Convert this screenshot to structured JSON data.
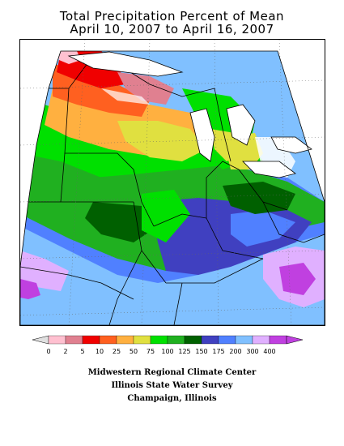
{
  "title": {
    "line1": "Total Precipitation Percent of Mean",
    "line2": "April 10, 2007 to April 16, 2007"
  },
  "map": {
    "variable": "precipitation percent of mean",
    "region": "Midwest United States",
    "notable_areas": [
      {
        "area": "Minnesota arrowhead",
        "range": "0-25"
      },
      {
        "area": "Upper Michigan / northern Wisconsin",
        "range": "25-75"
      },
      {
        "area": "Iowa / southern Wisconsin / Illinois",
        "range": "75-150"
      },
      {
        "area": "Kentucky / southern Ohio",
        "range": "150-200"
      },
      {
        "area": "Missouri / southern Illinois",
        "range": "175-300"
      },
      {
        "area": "eastern Kentucky",
        "range": "300-400"
      }
    ]
  },
  "legend": {
    "bins": [
      {
        "label": "0",
        "color": "#ffc0d0"
      },
      {
        "label": "2",
        "color": "#e08090"
      },
      {
        "label": "5",
        "color": "#f00000"
      },
      {
        "label": "10",
        "color": "#ff6020"
      },
      {
        "label": "25",
        "color": "#ffb040"
      },
      {
        "label": "50",
        "color": "#e0e040"
      },
      {
        "label": "75",
        "color": "#00e000"
      },
      {
        "label": "100",
        "color": "#20b020"
      },
      {
        "label": "125",
        "color": "#006000"
      },
      {
        "label": "150",
        "color": "#4040c0"
      },
      {
        "label": "175",
        "color": "#5080ff"
      },
      {
        "label": "200",
        "color": "#80c0ff"
      },
      {
        "label": "300",
        "color": "#e0b0ff"
      },
      {
        "label": "400",
        "color": "#c040e0"
      }
    ],
    "low_end_color": "#e0e0e0",
    "high_end_color": "#c040e0"
  },
  "credits": {
    "line1": "Midwestern Regional Climate Center",
    "line2": "Illinois State Water Survey",
    "line3": "Champaign, Illinois"
  }
}
